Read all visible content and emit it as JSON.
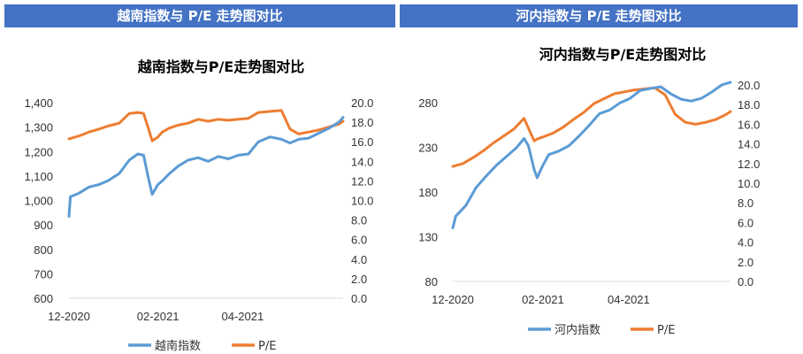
{
  "headers": {
    "left": "越南指数与 P/E 走势图对比",
    "right": "河内指数与 P/E 走势图对比"
  },
  "colors": {
    "index": "#5B9BD5",
    "pe": "#ED7D31",
    "header": "#4472C4"
  },
  "chart_data": [
    {
      "type": "line",
      "title": "越南指数与P/E走势图对比",
      "x_ticks": [
        "12-2020",
        "02-2021",
        "04-2021"
      ],
      "x_range": [
        "2020-12-01",
        "2021-06-10"
      ],
      "y_left": {
        "ylim": [
          600,
          1400
        ],
        "ticks": [
          "600",
          "700",
          "800",
          "900",
          "1,000",
          "1,100",
          "1,200",
          "1,300",
          "1,400"
        ]
      },
      "y_right": {
        "ylim": [
          0,
          20
        ],
        "ticks": [
          "0.0",
          "2.0",
          "4.0",
          "6.0",
          "8.0",
          "10.0",
          "12.0",
          "14.0",
          "16.0",
          "18.0",
          "20.0"
        ]
      },
      "legend": "bottom",
      "series": [
        {
          "name": "越南指数",
          "axis": "left",
          "x": [
            "2020-12-01",
            "2020-12-02",
            "2020-12-08",
            "2020-12-15",
            "2020-12-22",
            "2020-12-28",
            "2021-01-05",
            "2021-01-12",
            "2021-01-18",
            "2021-01-22",
            "2021-01-25",
            "2021-01-28",
            "2021-02-01",
            "2021-02-04",
            "2021-02-09",
            "2021-02-15",
            "2021-02-22",
            "2021-03-01",
            "2021-03-08",
            "2021-03-15",
            "2021-03-22",
            "2021-03-29",
            "2021-04-05",
            "2021-04-12",
            "2021-04-20",
            "2021-04-28",
            "2021-05-04",
            "2021-05-10",
            "2021-05-17",
            "2021-05-24",
            "2021-05-31",
            "2021-06-07",
            "2021-06-10"
          ],
          "values": [
            935,
            1015,
            1030,
            1055,
            1065,
            1080,
            1110,
            1165,
            1190,
            1185,
            1100,
            1025,
            1065,
            1080,
            1110,
            1140,
            1165,
            1175,
            1160,
            1180,
            1170,
            1185,
            1190,
            1240,
            1260,
            1250,
            1235,
            1250,
            1255,
            1275,
            1295,
            1320,
            1340
          ]
        },
        {
          "name": "P/E",
          "axis": "right",
          "x": [
            "2020-12-01",
            "2020-12-08",
            "2020-12-15",
            "2020-12-22",
            "2020-12-28",
            "2021-01-05",
            "2021-01-12",
            "2021-01-18",
            "2021-01-22",
            "2021-01-25",
            "2021-01-28",
            "2021-02-01",
            "2021-02-04",
            "2021-02-09",
            "2021-02-15",
            "2021-02-22",
            "2021-03-01",
            "2021-03-08",
            "2021-03-15",
            "2021-03-22",
            "2021-03-29",
            "2021-04-05",
            "2021-04-12",
            "2021-04-20",
            "2021-04-28",
            "2021-05-04",
            "2021-05-10",
            "2021-05-17",
            "2021-05-24",
            "2021-05-31",
            "2021-06-07",
            "2021-06-10"
          ],
          "values": [
            16.3,
            16.6,
            17.0,
            17.3,
            17.6,
            17.9,
            18.9,
            19.0,
            18.9,
            17.5,
            16.1,
            16.5,
            17.0,
            17.4,
            17.7,
            17.9,
            18.3,
            18.1,
            18.3,
            18.2,
            18.3,
            18.4,
            19.0,
            19.1,
            19.2,
            17.3,
            16.8,
            17.0,
            17.2,
            17.5,
            17.8,
            18.1
          ]
        }
      ]
    },
    {
      "type": "line",
      "title": "河内指数与P/E走势图对比",
      "x_ticks": [
        "12-2020",
        "02-2021",
        "04-2021"
      ],
      "x_range": [
        "2020-12-01",
        "2021-06-10"
      ],
      "y_left": {
        "ylim": [
          80,
          300
        ],
        "ticks": [
          "80",
          "130",
          "180",
          "230",
          "280"
        ]
      },
      "y_right": {
        "ylim": [
          0,
          20
        ],
        "ticks": [
          "0.0",
          "2.0",
          "4.0",
          "6.0",
          "8.0",
          "10.0",
          "12.0",
          "14.0",
          "16.0",
          "18.0",
          "20.0"
        ]
      },
      "legend": "bottom",
      "series": [
        {
          "name": "河内指数",
          "axis": "left",
          "x": [
            "2020-12-01",
            "2020-12-03",
            "2020-12-10",
            "2020-12-17",
            "2020-12-24",
            "2020-12-31",
            "2021-01-07",
            "2021-01-14",
            "2021-01-19",
            "2021-01-22",
            "2021-01-26",
            "2021-01-28",
            "2021-02-01",
            "2021-02-05",
            "2021-02-12",
            "2021-02-19",
            "2021-02-26",
            "2021-03-05",
            "2021-03-12",
            "2021-03-19",
            "2021-03-26",
            "2021-04-02",
            "2021-04-09",
            "2021-04-16",
            "2021-04-23",
            "2021-04-30",
            "2021-05-07",
            "2021-05-14",
            "2021-05-21",
            "2021-05-28",
            "2021-06-04",
            "2021-06-10"
          ],
          "values": [
            140,
            153,
            165,
            185,
            198,
            210,
            220,
            230,
            240,
            232,
            205,
            196,
            210,
            222,
            226,
            232,
            243,
            255,
            268,
            272,
            280,
            285,
            294,
            296,
            298,
            290,
            284,
            282,
            285,
            292,
            300,
            303
          ]
        },
        {
          "name": "P/E",
          "axis": "right",
          "x": [
            "2020-12-01",
            "2020-12-08",
            "2020-12-15",
            "2020-12-22",
            "2020-12-29",
            "2021-01-05",
            "2021-01-12",
            "2021-01-19",
            "2021-01-22",
            "2021-01-26",
            "2021-01-28",
            "2021-02-01",
            "2021-02-08",
            "2021-02-15",
            "2021-02-22",
            "2021-03-01",
            "2021-03-08",
            "2021-03-15",
            "2021-03-22",
            "2021-03-29",
            "2021-04-05",
            "2021-04-12",
            "2021-04-19",
            "2021-04-26",
            "2021-05-03",
            "2021-05-10",
            "2021-05-17",
            "2021-05-24",
            "2021-05-31",
            "2021-06-07",
            "2021-06-10"
          ],
          "values": [
            11.7,
            12.0,
            12.6,
            13.3,
            14.1,
            14.8,
            15.5,
            16.6,
            15.6,
            14.3,
            14.5,
            14.7,
            15.1,
            15.7,
            16.5,
            17.2,
            18.1,
            18.6,
            19.1,
            19.3,
            19.5,
            19.6,
            19.7,
            19.0,
            17.0,
            16.2,
            16.0,
            16.2,
            16.5,
            17.0,
            17.3
          ]
        }
      ]
    }
  ]
}
